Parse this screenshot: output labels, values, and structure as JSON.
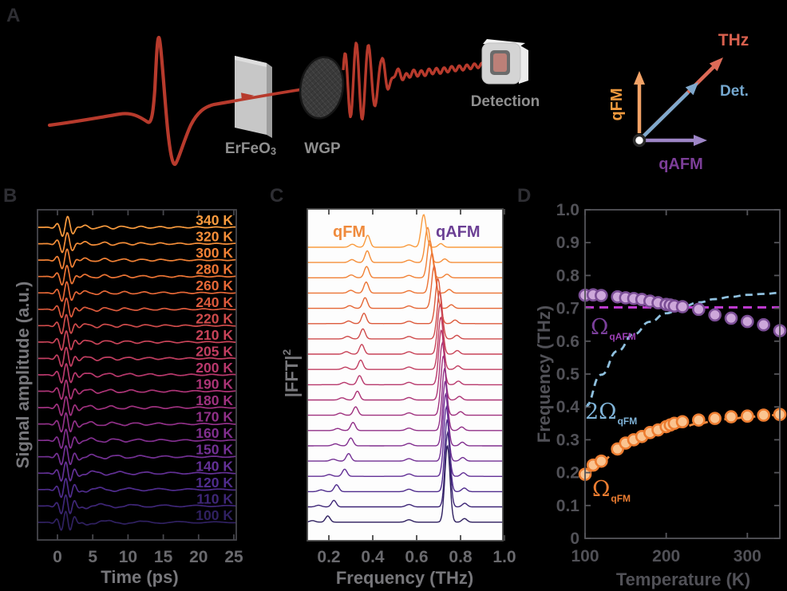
{
  "panel_labels": {
    "a": "A",
    "b": "B",
    "c": "C",
    "d": "D"
  },
  "panel_a": {
    "sample_label_main": "ErFeO",
    "sample_label_sub": "3",
    "wgp_label": "WGP",
    "detection_label": "Detection",
    "vector_labels": {
      "thz": "THz",
      "det": "Det.",
      "qfm": "qFM",
      "qafm": "qAFM"
    },
    "colors": {
      "beam": "#B73A2C",
      "thz_label": "#D8604E",
      "det_label": "#74A7CE",
      "qfm_arrow": "#F2A266",
      "qafm_arrow": "#9D85C6",
      "thz_arrow": "#DC6A57",
      "det_arrow": "#7FA8CC",
      "gray_labels": "#8F8F8F"
    }
  },
  "chart_data": [
    {
      "id": "B",
      "type": "line",
      "subtype": "waterfall_time_traces",
      "xlabel": "Time (ps)",
      "ylabel": "Signal amplitude (a.u.)",
      "x_range_ps": [
        -2.8,
        25.3
      ],
      "x_ticks": [
        0,
        5,
        10,
        15,
        20,
        25
      ],
      "x_tick_labels": [
        "0",
        "5",
        "10",
        "15",
        "20",
        "25"
      ],
      "temperatures_K": [
        340,
        320,
        300,
        280,
        260,
        240,
        220,
        210,
        205,
        200,
        190,
        180,
        170,
        160,
        150,
        140,
        120,
        110,
        100
      ],
      "temp_label_suffix": " K",
      "trace_colors": [
        "#F99B3E",
        "#F58E39",
        "#F18135",
        "#EC7434",
        "#E56736",
        "#DC5A3C",
        "#CF4B4B",
        "#C84358",
        "#C13E61",
        "#B8386C",
        "#AC3476",
        "#9F317F",
        "#913088",
        "#822F8F",
        "#733094",
        "#633096",
        "#4F2C8D",
        "#3E2677",
        "#2F2060"
      ],
      "qafm_freq_THz": [
        0.632,
        0.65,
        0.66,
        0.67,
        0.68,
        0.697,
        0.705,
        0.707,
        0.71,
        0.712,
        0.717,
        0.722,
        0.727,
        0.73,
        0.732,
        0.735,
        0.739,
        0.741,
        0.74
      ],
      "qfm_freq_THz": [
        0.377,
        0.375,
        0.372,
        0.37,
        0.365,
        0.36,
        0.355,
        0.35,
        0.345,
        0.34,
        0.33,
        0.322,
        0.31,
        0.3,
        0.29,
        0.272,
        0.235,
        0.223,
        0.195
      ]
    },
    {
      "id": "C",
      "type": "line",
      "subtype": "waterfall_fft_spectra",
      "xlabel": "Frequency (THz)",
      "ylabel_main": "|FFT|",
      "ylabel_sup": "2",
      "x_range_THz": [
        0.102,
        0.993
      ],
      "x_ticks": [
        0.2,
        0.4,
        0.6,
        0.8,
        1.0
      ],
      "x_tick_labels": [
        "0.2",
        "0.4",
        "0.6",
        "0.8",
        "1.0"
      ],
      "peak_labels": {
        "qfm": "qFM",
        "qafm": "qAFM"
      },
      "peak_label_colors": {
        "qfm": "#EF8A3C",
        "qafm": "#6B3F94"
      },
      "temperatures_K": [
        340,
        320,
        300,
        280,
        260,
        240,
        220,
        210,
        205,
        200,
        190,
        180,
        170,
        160,
        150,
        140,
        120,
        110,
        100
      ],
      "trace_colors": [
        "#F99B3E",
        "#F58E39",
        "#F18135",
        "#EC7434",
        "#E56736",
        "#DC5A3C",
        "#CF4B4B",
        "#C84358",
        "#C13E61",
        "#B8386C",
        "#AC3476",
        "#9F317F",
        "#913088",
        "#822F8F",
        "#733094",
        "#633096",
        "#4F2C8D",
        "#3E2677",
        "#2F2060"
      ],
      "qafm_peak_THz": [
        0.632,
        0.65,
        0.66,
        0.67,
        0.68,
        0.697,
        0.705,
        0.707,
        0.71,
        0.712,
        0.717,
        0.722,
        0.727,
        0.73,
        0.732,
        0.735,
        0.739,
        0.741,
        0.74
      ],
      "qfm_peak_THz": [
        0.377,
        0.375,
        0.372,
        0.37,
        0.365,
        0.36,
        0.355,
        0.35,
        0.345,
        0.34,
        0.33,
        0.322,
        0.31,
        0.3,
        0.29,
        0.272,
        0.235,
        0.223,
        0.195
      ]
    },
    {
      "id": "D",
      "type": "scatter",
      "xlabel": "Temperature (K)",
      "ylabel": "Frequency (THz)",
      "xlim": [
        100,
        340
      ],
      "ylim": [
        0,
        1.0
      ],
      "x_ticks": [
        100,
        200,
        300
      ],
      "x_tick_labels": [
        "100",
        "200",
        "300"
      ],
      "y_ticks": [
        0,
        0.1,
        0.2,
        0.3,
        0.4,
        0.5,
        0.6,
        0.7,
        0.8,
        0.9,
        1.0
      ],
      "y_tick_labels": [
        "0",
        "0.1",
        "0.2",
        "0.3",
        "0.4",
        "0.5",
        "0.6",
        "0.7",
        "0.8",
        "0.9",
        "1.0"
      ],
      "series": [
        {
          "name": "qAFM mode frequency",
          "marker": "circle",
          "fill": "#CDA7DA",
          "stroke": "#7B4E96",
          "x": [
            100,
            110,
            120,
            140,
            150,
            160,
            170,
            180,
            190,
            200,
            205,
            210,
            220,
            240,
            260,
            280,
            300,
            320,
            340
          ],
          "y": [
            0.74,
            0.741,
            0.739,
            0.735,
            0.732,
            0.73,
            0.727,
            0.722,
            0.717,
            0.712,
            0.71,
            0.707,
            0.705,
            0.697,
            0.68,
            0.67,
            0.66,
            0.65,
            0.632
          ]
        },
        {
          "name": "qFM mode frequency",
          "marker": "circle",
          "fill": "#FAC490",
          "stroke": "#ED7D31",
          "x": [
            100,
            110,
            120,
            140,
            150,
            160,
            170,
            180,
            190,
            200,
            205,
            210,
            220,
            240,
            260,
            280,
            300,
            320,
            340
          ],
          "y": [
            0.195,
            0.223,
            0.235,
            0.272,
            0.29,
            0.3,
            0.31,
            0.322,
            0.33,
            0.34,
            0.345,
            0.35,
            0.355,
            0.36,
            0.365,
            0.37,
            0.372,
            0.375,
            0.377
          ]
        }
      ],
      "fits": [
        {
          "name": "qAFM_fit_line",
          "style": "dashed",
          "color": "#C13BD3",
          "kind": "hline",
          "y": 0.703
        },
        {
          "name": "qFM_fit_curve",
          "style": "dashed",
          "color": "#ED8A3F",
          "kind": "curve",
          "x": [
            100,
            120,
            140,
            160,
            180,
            200,
            220,
            240,
            260,
            280,
            300,
            320,
            340
          ],
          "y": [
            0.195,
            0.235,
            0.267,
            0.291,
            0.312,
            0.327,
            0.34,
            0.349,
            0.358,
            0.364,
            0.369,
            0.373,
            0.376
          ]
        },
        {
          "name": "two_omega_qFM_curve",
          "style": "dashed",
          "color": "#8FC0DE",
          "kind": "curve",
          "x": [
            100,
            120,
            140,
            160,
            180,
            200,
            220,
            240,
            260,
            280,
            300,
            320,
            340
          ],
          "y": [
            0.4,
            0.498,
            0.57,
            0.621,
            0.659,
            0.685,
            0.705,
            0.718,
            0.728,
            0.735,
            0.741,
            0.744,
            0.747
          ]
        }
      ],
      "annotations": [
        {
          "id": "omega_qafm",
          "text_main": "Ω",
          "text_sub": "qAFM",
          "color": "#7B3F9B"
        },
        {
          "id": "two_omega_qfm",
          "text_main": "2Ω",
          "text_sub": "qFM",
          "color": "#7FB3D8"
        },
        {
          "id": "omega_qfm",
          "text_main": "Ω",
          "text_sub": "qFM",
          "color": "#ED7D31"
        }
      ]
    }
  ]
}
